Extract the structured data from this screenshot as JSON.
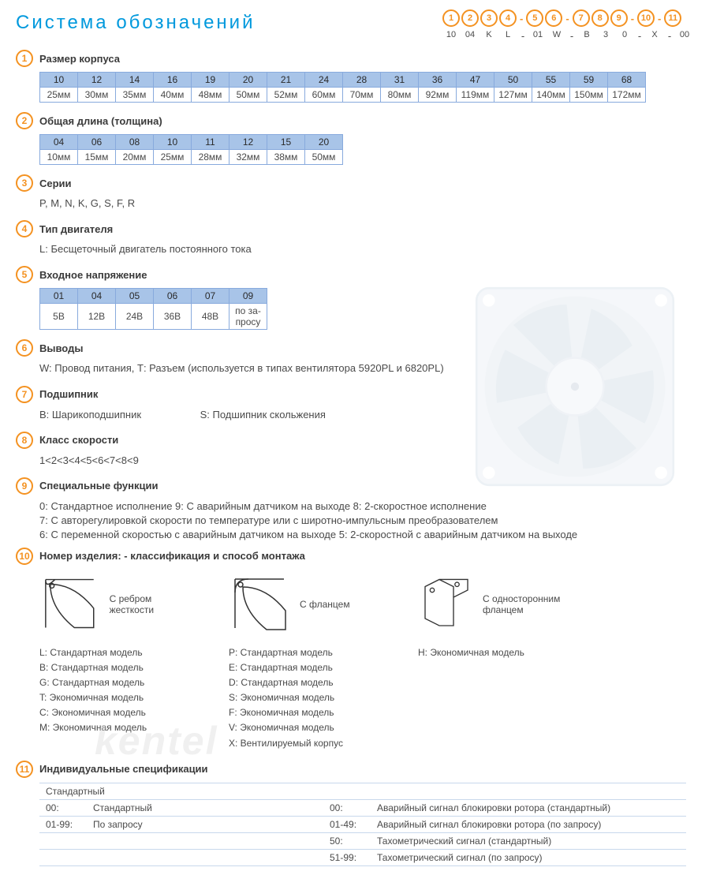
{
  "title": "Система обозначений",
  "designation": {
    "positions": [
      "1",
      "2",
      "3",
      "4",
      "5",
      "6",
      "7",
      "8",
      "9",
      "10",
      "11"
    ],
    "dashes_after": [
      3,
      5,
      8,
      9
    ],
    "values": [
      "10",
      "04",
      "K",
      "L",
      "01",
      "W",
      "B",
      "3",
      "0",
      "X",
      "00"
    ]
  },
  "colors": {
    "accent": "#f49221",
    "link": "#0099dd",
    "table_header": "#a8c4e8",
    "table_border": "#88aadd"
  },
  "sections": {
    "s1": {
      "num": "1",
      "title": "Размер корпуса",
      "table": {
        "codes": [
          "10",
          "12",
          "14",
          "16",
          "19",
          "20",
          "21",
          "24",
          "28",
          "31",
          "36",
          "47",
          "50",
          "55",
          "59",
          "68"
        ],
        "values": [
          "25мм",
          "30мм",
          "35мм",
          "40мм",
          "48мм",
          "50мм",
          "52мм",
          "60мм",
          "70мм",
          "80мм",
          "92мм",
          "119мм",
          "127мм",
          "140мм",
          "150мм",
          "172мм"
        ]
      }
    },
    "s2": {
      "num": "2",
      "title": "Общая длина (толщина)",
      "table": {
        "codes": [
          "04",
          "06",
          "08",
          "10",
          "11",
          "12",
          "15",
          "20"
        ],
        "values": [
          "10мм",
          "15мм",
          "20мм",
          "25мм",
          "28мм",
          "32мм",
          "38мм",
          "50мм"
        ]
      }
    },
    "s3": {
      "num": "3",
      "title": "Серии",
      "text": "P, M, N, K, G, S, F, R"
    },
    "s4": {
      "num": "4",
      "title": "Тип двигателя",
      "text": "L: Бесщеточный двигатель постоянного тока"
    },
    "s5": {
      "num": "5",
      "title": "Входное напряжение",
      "table": {
        "codes": [
          "01",
          "04",
          "05",
          "06",
          "07",
          "09"
        ],
        "values": [
          "5В",
          "12В",
          "24В",
          "36В",
          "48В",
          "по за-\nпросу"
        ]
      }
    },
    "s6": {
      "num": "6",
      "title": "Выводы",
      "text": "W: Провод питания, Т: Разъем (используется в типах вентилятора  5920PL и 6820PL)"
    },
    "s7": {
      "num": "7",
      "title": "Подшипник",
      "text_a": "В: Шарикоподшипник",
      "text_b": "S: Подшипник скольжения"
    },
    "s8": {
      "num": "8",
      "title": "Класс скорости",
      "text": "1<2<3<4<5<6<7<8<9"
    },
    "s9": {
      "num": "9",
      "title": "Специальные функции",
      "lines": [
        "0: Стандартное исполнение   9: С аварийным датчиком на выходе   8: 2-скоростное исполнение",
        "7: С авторегулировкой скорости по температуре или с широтно-импульсным преобразователем",
        "6: С переменной скоростью с аварийным датчиком на выходе   5: 2-скоростной с аварийным датчиком на выходе"
      ]
    },
    "s10": {
      "num": "10",
      "title": "Номер изделия: - классификация  и способ монтажа",
      "col1": {
        "caption": "С ребром жесткости",
        "items": [
          "L:  Стандартная модель",
          "B:  Стандартная модель",
          "G:  Стандартная модель",
          "T:  Экономичная модель",
          "C:  Экономичная модель",
          "M:  Экономичная модель"
        ]
      },
      "col2": {
        "caption": "С фланцем",
        "items": [
          "P:  Стандартная модель",
          "E:  Стандартная модель",
          "D:  Стандартная модель",
          "S:  Экономичная модель",
          "F:  Экономичная модель",
          "V:  Экономичная модель",
          "X:  Вентилируемый корпус"
        ]
      },
      "col3": {
        "caption": "С односторонним фланцем",
        "items": [
          "H:  Экономичная модель"
        ]
      }
    },
    "s11": {
      "num": "11",
      "title": "Индивидуальные спецификации",
      "left_header": "Стандартный",
      "rows": [
        [
          "00:",
          "Стандартный",
          "00:",
          "Аварийный сигнал блокировки ротора (стандартный)"
        ],
        [
          "01-99:",
          "По запросу",
          "01-49:",
          "Аварийный сигнал блокировки ротора (по запросу)"
        ],
        [
          "",
          "",
          "50:",
          "Тахометрический сигнал (стандартный)"
        ],
        [
          "",
          "",
          "51-99:",
          "Тахометрический сигнал (по запросу)"
        ]
      ]
    }
  },
  "watermark": "kentel"
}
